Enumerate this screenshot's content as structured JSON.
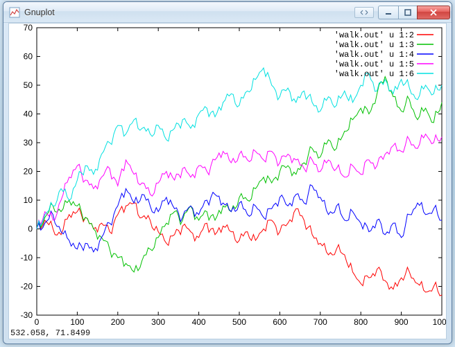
{
  "window": {
    "title": "Gnuplot"
  },
  "status": {
    "coords": "532.058,  71.8499"
  },
  "chart": {
    "type": "line",
    "background_color": "#ffffff",
    "frame_color": "#000000",
    "tick_color": "#000000",
    "xlim": [
      0,
      1000
    ],
    "ylim": [
      -30,
      70
    ],
    "xtick_step": 100,
    "ytick_step": 10,
    "tick_fontsize": 12,
    "legend_fontsize": 12,
    "line_width": 1,
    "legend_position": "top-right",
    "series": [
      {
        "label": "'walk.out' u 1:2",
        "color": "#ff0000",
        "data": [
          [
            0,
            0
          ],
          [
            20,
            3
          ],
          [
            40,
            0
          ],
          [
            60,
            -2
          ],
          [
            80,
            5
          ],
          [
            100,
            6
          ],
          [
            120,
            4
          ],
          [
            140,
            0
          ],
          [
            160,
            2
          ],
          [
            180,
            -1
          ],
          [
            200,
            5
          ],
          [
            220,
            8
          ],
          [
            240,
            9
          ],
          [
            260,
            4
          ],
          [
            280,
            3
          ],
          [
            300,
            -1
          ],
          [
            320,
            -5
          ],
          [
            340,
            -2
          ],
          [
            360,
            1
          ],
          [
            380,
            -1
          ],
          [
            400,
            -3
          ],
          [
            420,
            2
          ],
          [
            440,
            -2
          ],
          [
            460,
            1
          ],
          [
            480,
            -1
          ],
          [
            500,
            -4
          ],
          [
            520,
            -1
          ],
          [
            540,
            -4
          ],
          [
            560,
            0
          ],
          [
            580,
            3
          ],
          [
            600,
            -1
          ],
          [
            620,
            2
          ],
          [
            640,
            7
          ],
          [
            660,
            3
          ],
          [
            680,
            -2
          ],
          [
            700,
            -5
          ],
          [
            720,
            -9
          ],
          [
            740,
            -7
          ],
          [
            760,
            -9
          ],
          [
            780,
            -15
          ],
          [
            800,
            -19
          ],
          [
            820,
            -17
          ],
          [
            840,
            -14
          ],
          [
            860,
            -18
          ],
          [
            880,
            -21
          ],
          [
            900,
            -17
          ],
          [
            920,
            -15
          ],
          [
            940,
            -19
          ],
          [
            960,
            -22
          ],
          [
            980,
            -20
          ],
          [
            1000,
            -23
          ]
        ]
      },
      {
        "label": "'walk.out' u 1:3",
        "color": "#00c000",
        "data": [
          [
            0,
            0
          ],
          [
            20,
            4
          ],
          [
            40,
            8
          ],
          [
            60,
            6
          ],
          [
            80,
            10
          ],
          [
            100,
            8
          ],
          [
            120,
            4
          ],
          [
            140,
            0
          ],
          [
            160,
            -3
          ],
          [
            180,
            -7
          ],
          [
            200,
            -10
          ],
          [
            220,
            -12
          ],
          [
            240,
            -15
          ],
          [
            260,
            -11
          ],
          [
            280,
            -7
          ],
          [
            300,
            -3
          ],
          [
            320,
            2
          ],
          [
            340,
            6
          ],
          [
            360,
            3
          ],
          [
            380,
            8
          ],
          [
            400,
            3
          ],
          [
            420,
            6
          ],
          [
            440,
            3
          ],
          [
            460,
            8
          ],
          [
            480,
            6
          ],
          [
            500,
            11
          ],
          [
            520,
            10
          ],
          [
            540,
            14
          ],
          [
            560,
            18
          ],
          [
            580,
            16
          ],
          [
            600,
            20
          ],
          [
            620,
            22
          ],
          [
            640,
            19
          ],
          [
            660,
            23
          ],
          [
            680,
            28
          ],
          [
            700,
            25
          ],
          [
            720,
            31
          ],
          [
            740,
            28
          ],
          [
            760,
            34
          ],
          [
            780,
            38
          ],
          [
            800,
            42
          ],
          [
            820,
            40
          ],
          [
            840,
            47
          ],
          [
            860,
            53
          ],
          [
            880,
            46
          ],
          [
            900,
            41
          ],
          [
            920,
            45
          ],
          [
            940,
            38
          ],
          [
            960,
            42
          ],
          [
            980,
            37
          ],
          [
            1000,
            44
          ]
        ]
      },
      {
        "label": "'walk.out' u 1:4",
        "color": "#0000ff",
        "data": [
          [
            0,
            0
          ],
          [
            20,
            2
          ],
          [
            40,
            5
          ],
          [
            60,
            -1
          ],
          [
            80,
            -4
          ],
          [
            100,
            -7
          ],
          [
            120,
            -5
          ],
          [
            140,
            -8
          ],
          [
            160,
            -3
          ],
          [
            180,
            2
          ],
          [
            200,
            8
          ],
          [
            220,
            14
          ],
          [
            240,
            9
          ],
          [
            260,
            12
          ],
          [
            280,
            8
          ],
          [
            300,
            6
          ],
          [
            320,
            11
          ],
          [
            340,
            7
          ],
          [
            360,
            4
          ],
          [
            380,
            8
          ],
          [
            400,
            5
          ],
          [
            420,
            10
          ],
          [
            440,
            12
          ],
          [
            460,
            9
          ],
          [
            480,
            6
          ],
          [
            500,
            9
          ],
          [
            520,
            5
          ],
          [
            540,
            8
          ],
          [
            560,
            4
          ],
          [
            580,
            7
          ],
          [
            600,
            11
          ],
          [
            620,
            8
          ],
          [
            640,
            12
          ],
          [
            660,
            9
          ],
          [
            680,
            15
          ],
          [
            700,
            11
          ],
          [
            720,
            5
          ],
          [
            740,
            8
          ],
          [
            760,
            3
          ],
          [
            780,
            6
          ],
          [
            800,
            2
          ],
          [
            820,
            -1
          ],
          [
            840,
            3
          ],
          [
            860,
            -2
          ],
          [
            880,
            2
          ],
          [
            900,
            -3
          ],
          [
            920,
            5
          ],
          [
            940,
            9
          ],
          [
            960,
            5
          ],
          [
            980,
            7
          ],
          [
            1000,
            3
          ]
        ]
      },
      {
        "label": "'walk.out' u 1:5",
        "color": "#ff00ff",
        "data": [
          [
            0,
            0
          ],
          [
            20,
            6
          ],
          [
            40,
            3
          ],
          [
            60,
            10
          ],
          [
            80,
            18
          ],
          [
            100,
            22
          ],
          [
            120,
            17
          ],
          [
            140,
            14
          ],
          [
            160,
            18
          ],
          [
            180,
            21
          ],
          [
            200,
            15
          ],
          [
            220,
            24
          ],
          [
            240,
            19
          ],
          [
            260,
            16
          ],
          [
            280,
            12
          ],
          [
            300,
            16
          ],
          [
            320,
            20
          ],
          [
            340,
            17
          ],
          [
            360,
            21
          ],
          [
            380,
            18
          ],
          [
            400,
            22
          ],
          [
            420,
            20
          ],
          [
            440,
            24
          ],
          [
            460,
            27
          ],
          [
            480,
            23
          ],
          [
            500,
            26
          ],
          [
            520,
            24
          ],
          [
            540,
            27
          ],
          [
            560,
            24
          ],
          [
            580,
            27
          ],
          [
            600,
            23
          ],
          [
            620,
            26
          ],
          [
            640,
            24
          ],
          [
            660,
            21
          ],
          [
            680,
            24
          ],
          [
            700,
            20
          ],
          [
            720,
            24
          ],
          [
            740,
            21
          ],
          [
            760,
            18
          ],
          [
            780,
            22
          ],
          [
            800,
            19
          ],
          [
            820,
            24
          ],
          [
            840,
            22
          ],
          [
            860,
            26
          ],
          [
            880,
            29
          ],
          [
            900,
            27
          ],
          [
            920,
            31
          ],
          [
            940,
            28
          ],
          [
            960,
            33
          ],
          [
            980,
            30
          ],
          [
            1000,
            32
          ]
        ]
      },
      {
        "label": "'walk.out' u 1:6",
        "color": "#00e0e0",
        "data": [
          [
            0,
            0
          ],
          [
            20,
            5
          ],
          [
            40,
            8
          ],
          [
            60,
            14
          ],
          [
            80,
            10
          ],
          [
            100,
            17
          ],
          [
            120,
            22
          ],
          [
            140,
            19
          ],
          [
            160,
            26
          ],
          [
            180,
            30
          ],
          [
            200,
            36
          ],
          [
            220,
            33
          ],
          [
            240,
            38
          ],
          [
            260,
            35
          ],
          [
            280,
            33
          ],
          [
            300,
            36
          ],
          [
            320,
            31
          ],
          [
            340,
            35
          ],
          [
            360,
            38
          ],
          [
            380,
            35
          ],
          [
            400,
            40
          ],
          [
            420,
            42
          ],
          [
            440,
            39
          ],
          [
            460,
            44
          ],
          [
            480,
            47
          ],
          [
            500,
            43
          ],
          [
            520,
            48
          ],
          [
            540,
            52
          ],
          [
            560,
            56
          ],
          [
            580,
            50
          ],
          [
            600,
            46
          ],
          [
            620,
            49
          ],
          [
            640,
            44
          ],
          [
            660,
            48
          ],
          [
            680,
            44
          ],
          [
            700,
            41
          ],
          [
            720,
            46
          ],
          [
            740,
            43
          ],
          [
            760,
            48
          ],
          [
            780,
            44
          ],
          [
            800,
            50
          ],
          [
            820,
            54
          ],
          [
            840,
            48
          ],
          [
            860,
            52
          ],
          [
            880,
            47
          ],
          [
            900,
            52
          ],
          [
            920,
            49
          ],
          [
            940,
            45
          ],
          [
            960,
            50
          ],
          [
            980,
            47
          ],
          [
            1000,
            50
          ]
        ]
      }
    ]
  }
}
